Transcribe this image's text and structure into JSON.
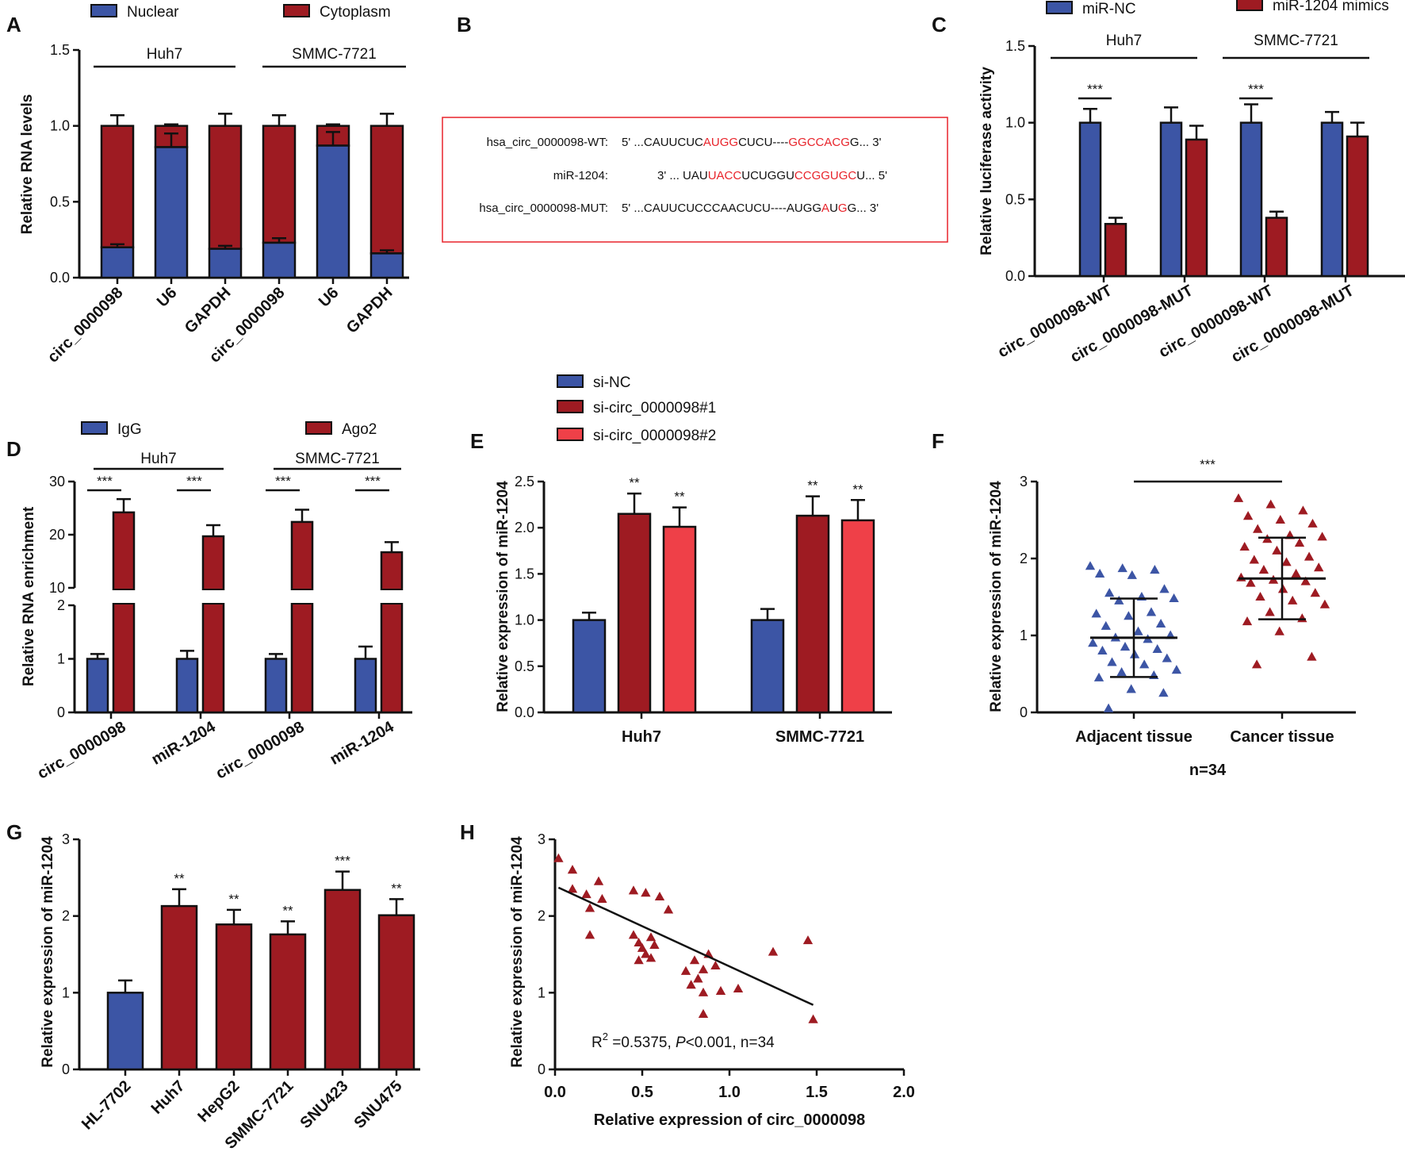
{
  "colors": {
    "blue": "#3c55a5",
    "darkred": "#9e1b22",
    "lightred": "#ef4048",
    "seqred": "#e8242b"
  },
  "chart_data": [
    {
      "id": "A",
      "type": "bar",
      "stacked": true,
      "ylabel": "Relative RNA levels",
      "ylim": [
        0,
        1.5
      ],
      "yticks": [
        "0.0",
        "0.5",
        "1.0",
        "1.5"
      ],
      "groups": [
        {
          "label": "Huh7",
          "categories": [
            "circ_0000098",
            "U6",
            "GAPDH"
          ]
        },
        {
          "label": "SMMC-7721",
          "categories": [
            "circ_0000098",
            "U6",
            "GAPDH"
          ]
        }
      ],
      "series": [
        {
          "name": "Nuclear",
          "color": "blue",
          "values": [
            0.2,
            0.86,
            0.19,
            0.23,
            0.87,
            0.16
          ],
          "errors": [
            0.02,
            0.09,
            0.02,
            0.03,
            0.09,
            0.02
          ]
        },
        {
          "name": "Cytoplasm",
          "color": "darkred",
          "values": [
            0.8,
            0.14,
            0.81,
            0.77,
            0.13,
            0.84
          ],
          "errors": [
            0.07,
            0.01,
            0.08,
            0.07,
            0.01,
            0.08
          ]
        }
      ]
    },
    {
      "id": "B",
      "type": "table",
      "rows": [
        {
          "label": "hsa_circ_0000098-WT:",
          "parts": [
            {
              "t": "5' ...CAUUCUC",
              "r": false
            },
            {
              "t": "AUGG",
              "r": true
            },
            {
              "t": "CUCU----",
              "r": false
            },
            {
              "t": "GGCCACG",
              "r": true
            },
            {
              "t": "G... 3'",
              "r": false
            }
          ]
        },
        {
          "label": "miR-1204:",
          "parts": [
            {
              "t": "3' ... UAU",
              "r": false
            },
            {
              "t": "UACC",
              "r": true
            },
            {
              "t": "UCUGGU",
              "r": false
            },
            {
              "t": "CCGGUGC",
              "r": true
            },
            {
              "t": "U... 5'",
              "r": false
            }
          ]
        },
        {
          "label": "hsa_circ_0000098-MUT:",
          "parts": [
            {
              "t": "5' ...CAUUCUCCCAACUCU----AUGG",
              "r": false
            },
            {
              "t": "A",
              "r": true
            },
            {
              "t": "U",
              "r": false
            },
            {
              "t": "G",
              "r": true
            },
            {
              "t": "G... 3'",
              "r": false
            }
          ]
        }
      ]
    },
    {
      "id": "C",
      "type": "bar",
      "ylabel": "Relative luciferase activity",
      "ylim": [
        0,
        1.5
      ],
      "yticks": [
        "0.0",
        "0.5",
        "1.0",
        "1.5"
      ],
      "groups": [
        {
          "label": "Huh7"
        },
        {
          "label": "SMMC-7721"
        }
      ],
      "categories": [
        "circ_0000098-WT",
        "circ_0000098-MUT",
        "circ_0000098-WT",
        "circ_0000098-MUT"
      ],
      "series": [
        {
          "name": "miR-NC",
          "color": "blue",
          "values": [
            1.0,
            1.0,
            1.0,
            1.0
          ],
          "errors": [
            0.09,
            0.1,
            0.12,
            0.07
          ]
        },
        {
          "name": "miR-1204 mimics",
          "color": "darkred",
          "values": [
            0.34,
            0.89,
            0.38,
            0.91
          ],
          "errors": [
            0.04,
            0.09,
            0.04,
            0.09
          ]
        }
      ],
      "significance": [
        {
          "category": 0,
          "label": "***"
        },
        {
          "category": 2,
          "label": "***"
        }
      ]
    },
    {
      "id": "D",
      "type": "bar",
      "broken_axis": true,
      "ylabel": "Relative RNA enrichment",
      "lower_ylim": [
        0,
        2
      ],
      "upper_ylim": [
        10,
        30
      ],
      "yticks_lower": [
        "0",
        "1",
        "2"
      ],
      "yticks_upper": [
        "10",
        "20",
        "30"
      ],
      "groups": [
        {
          "label": "Huh7"
        },
        {
          "label": "SMMC-7721"
        }
      ],
      "categories": [
        "circ_0000098",
        "miR-1204",
        "circ_0000098",
        "miR-1204"
      ],
      "series": [
        {
          "name": "IgG",
          "color": "blue",
          "values": [
            1.0,
            1.0,
            1.0,
            1.0
          ],
          "errors": [
            0.09,
            0.15,
            0.09,
            0.23
          ]
        },
        {
          "name": "Ago2",
          "color": "darkred",
          "values": [
            24.2,
            19.7,
            22.4,
            16.7
          ],
          "errors": [
            2.5,
            2.1,
            2.3,
            1.9
          ]
        }
      ],
      "significance": [
        "***",
        "***",
        "***",
        "***"
      ]
    },
    {
      "id": "E",
      "type": "bar",
      "ylabel": "Relative expression of miR-1204",
      "ylim": [
        0,
        2.5
      ],
      "yticks": [
        "0.0",
        "0.5",
        "1.0",
        "1.5",
        "2.0",
        "2.5"
      ],
      "categories": [
        "Huh7",
        "SMMC-7721"
      ],
      "series": [
        {
          "name": "si-NC",
          "color": "blue",
          "values": [
            1.0,
            1.0
          ],
          "errors": [
            0.08,
            0.12
          ]
        },
        {
          "name": "si-circ_0000098#1",
          "color": "darkred",
          "values": [
            2.15,
            2.13
          ],
          "errors": [
            0.22,
            0.21
          ]
        },
        {
          "name": "si-circ_0000098#2",
          "color": "lightred",
          "values": [
            2.01,
            2.08
          ],
          "errors": [
            0.21,
            0.22
          ]
        }
      ],
      "significance": [
        [
          "",
          "**",
          "**"
        ],
        [
          "",
          "**",
          "**"
        ]
      ]
    },
    {
      "id": "F",
      "type": "scatter",
      "ylabel": "Relative expression of miR-1204",
      "ylim": [
        0,
        3
      ],
      "yticks": [
        "0",
        "1",
        "2",
        "3"
      ],
      "categories": [
        "Adjacent tissue",
        "Cancer tissue"
      ],
      "note": "n=34",
      "significance": "***",
      "groups": [
        {
          "name": "Adjacent tissue",
          "color": "blue",
          "mean": 0.97,
          "sd": 0.51,
          "values": [
            1.9,
            1.87,
            1.85,
            1.8,
            1.78,
            1.6,
            1.55,
            1.5,
            1.48,
            1.45,
            1.3,
            1.28,
            1.25,
            1.15,
            1.12,
            1.05,
            1.0,
            0.97,
            0.95,
            0.9,
            0.85,
            0.82,
            0.8,
            0.75,
            0.7,
            0.65,
            0.62,
            0.55,
            0.52,
            0.48,
            0.45,
            0.3,
            0.25,
            0.05
          ]
        },
        {
          "name": "Cancer tissue",
          "color": "darkred",
          "mean": 1.74,
          "sd": 0.53,
          "values": [
            2.78,
            2.7,
            2.62,
            2.55,
            2.5,
            2.45,
            2.38,
            2.3,
            2.28,
            2.25,
            2.2,
            2.15,
            2.1,
            2.02,
            1.98,
            1.95,
            1.88,
            1.85,
            1.8,
            1.75,
            1.72,
            1.7,
            1.68,
            1.6,
            1.55,
            1.5,
            1.45,
            1.4,
            1.3,
            1.22,
            1.18,
            1.05,
            0.72,
            0.62
          ]
        }
      ]
    },
    {
      "id": "G",
      "type": "bar",
      "ylabel": "Relative expression of miR-1204",
      "ylim": [
        0,
        3
      ],
      "yticks": [
        "0",
        "1",
        "2",
        "3"
      ],
      "categories": [
        "HL-7702",
        "Huh7",
        "HepG2",
        "SMMC-7721",
        "SNU423",
        "SNU475"
      ],
      "values": [
        1.0,
        2.13,
        1.89,
        1.76,
        2.34,
        2.01
      ],
      "errors": [
        0.16,
        0.22,
        0.19,
        0.17,
        0.24,
        0.21
      ],
      "colors": [
        "blue",
        "darkred",
        "darkred",
        "darkred",
        "darkred",
        "darkred"
      ],
      "significance": [
        "",
        "**",
        "**",
        "**",
        "***",
        "**"
      ]
    },
    {
      "id": "H",
      "type": "scatter",
      "xlabel": "Relative expression of circ_0000098",
      "ylabel": "Relative expression of miR-1204",
      "xlim": [
        0,
        2.0
      ],
      "ylim": [
        0,
        3
      ],
      "xticks": [
        "0.0",
        "0.5",
        "1.0",
        "1.5",
        "2.0"
      ],
      "yticks": [
        "0",
        "1",
        "2",
        "3"
      ],
      "annotation": {
        "r2_label": "R",
        "r2_sup": "2",
        "r2_value": " =0.5375, ",
        "p_label": "P",
        "p_text": "<0.001, n=34"
      },
      "fit": {
        "x1": 0.02,
        "y1": 2.37,
        "x2": 1.48,
        "y2": 0.84
      },
      "points": [
        [
          0.02,
          2.75
        ],
        [
          0.1,
          2.6
        ],
        [
          0.1,
          2.35
        ],
        [
          0.18,
          2.28
        ],
        [
          0.2,
          2.1
        ],
        [
          0.2,
          1.75
        ],
        [
          0.25,
          2.45
        ],
        [
          0.27,
          2.22
        ],
        [
          0.45,
          2.33
        ],
        [
          0.52,
          2.3
        ],
        [
          0.6,
          2.25
        ],
        [
          0.65,
          2.08
        ],
        [
          0.45,
          1.75
        ],
        [
          0.48,
          1.65
        ],
        [
          0.5,
          1.58
        ],
        [
          0.52,
          1.5
        ],
        [
          0.55,
          1.72
        ],
        [
          0.57,
          1.62
        ],
        [
          0.48,
          1.42
        ],
        [
          0.55,
          1.45
        ],
        [
          0.75,
          1.28
        ],
        [
          0.8,
          1.42
        ],
        [
          0.85,
          1.3
        ],
        [
          0.88,
          1.5
        ],
        [
          0.82,
          1.18
        ],
        [
          0.78,
          1.1
        ],
        [
          0.92,
          1.35
        ],
        [
          0.85,
          1.0
        ],
        [
          0.95,
          1.02
        ],
        [
          1.05,
          1.05
        ],
        [
          0.85,
          0.72
        ],
        [
          1.25,
          1.53
        ],
        [
          1.45,
          1.68
        ],
        [
          1.48,
          0.65
        ]
      ]
    }
  ]
}
